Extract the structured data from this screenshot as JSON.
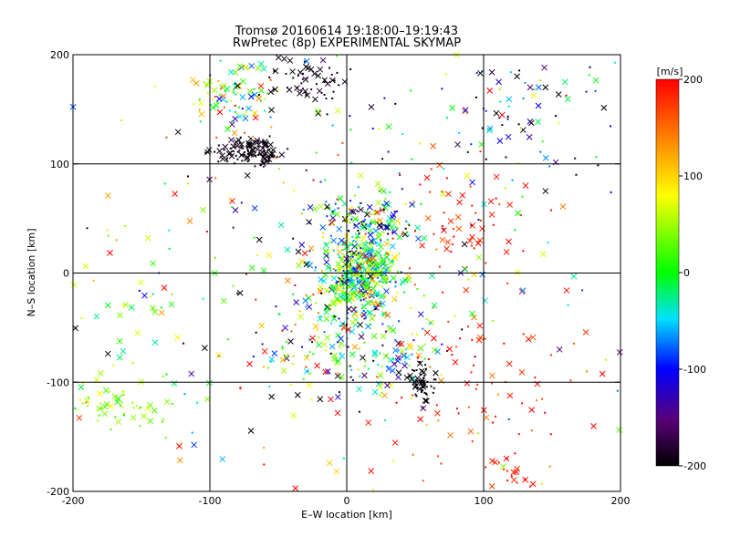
{
  "chart_data": {
    "type": "scatter",
    "title": "Tromsø 20160614 19:18:00–19:19:43",
    "subtitle": "RwPretec (8p) EXPERIMENTAL SKYMAP",
    "xlabel": "E–W location [km]",
    "ylabel": "N–S location [km]",
    "xlim": [
      -200,
      200
    ],
    "ylim": [
      -200,
      200
    ],
    "xticks": [
      "-200",
      "-100",
      "0",
      "100",
      "200"
    ],
    "yticks": [
      "-200",
      "-100",
      "0",
      "100",
      "200"
    ],
    "grid": true,
    "colorbar": {
      "label": "[m/s]",
      "range": [
        -200,
        200
      ],
      "ticks": [
        "-200",
        "-100",
        "0",
        "100",
        "200"
      ],
      "colormap": "rainbow (black-purple-blue-cyan-green-yellow-red)"
    },
    "marker_types": [
      "cross",
      "dot"
    ],
    "clusters": [
      {
        "x": 10,
        "y": 0,
        "sx": 15,
        "sy": 20,
        "n": 500,
        "vmean": 0,
        "vsd": 70
      },
      {
        "x": -70,
        "y": 112,
        "sx": 12,
        "sy": 6,
        "n": 120,
        "vmean": -195,
        "vsd": 8
      },
      {
        "x": -80,
        "y": 165,
        "sx": 15,
        "sy": 20,
        "n": 100,
        "vmean": 20,
        "vsd": 90
      },
      {
        "x": -30,
        "y": 175,
        "sx": 20,
        "sy": 15,
        "n": 70,
        "vmean": -190,
        "vsd": 15
      },
      {
        "x": 20,
        "y": 50,
        "sx": 20,
        "sy": 10,
        "n": 120,
        "vmean": -50,
        "vsd": 130
      },
      {
        "x": 10,
        "y": -75,
        "sx": 35,
        "sy": 20,
        "n": 200,
        "vmean": 0,
        "vsd": 110
      },
      {
        "x": 55,
        "y": -100,
        "sx": 5,
        "sy": 8,
        "n": 50,
        "vmean": -198,
        "vsd": 4
      },
      {
        "x": 80,
        "y": 40,
        "sx": 25,
        "sy": 30,
        "n": 60,
        "vmean": 185,
        "vsd": 15
      },
      {
        "x": -170,
        "y": -120,
        "sx": 20,
        "sy": 10,
        "n": 60,
        "vmean": 40,
        "vsd": 25
      },
      {
        "x": 120,
        "y": -180,
        "sx": 10,
        "sy": 10,
        "n": 20,
        "vmean": 190,
        "vsd": 10
      },
      {
        "x": 100,
        "y": -100,
        "sx": 40,
        "sy": 50,
        "n": 80,
        "vmean": 180,
        "vsd": 25
      },
      {
        "x": 130,
        "y": 150,
        "sx": 40,
        "sy": 30,
        "n": 80,
        "vmean": -100,
        "vsd": 100
      },
      {
        "x": -150,
        "y": -50,
        "sx": 30,
        "sy": 40,
        "n": 40,
        "vmean": 50,
        "vsd": 60
      },
      {
        "x": 0,
        "y": 0,
        "sx": 110,
        "sy": 110,
        "n": 300,
        "vmean": 0,
        "vsd": 150
      }
    ]
  }
}
